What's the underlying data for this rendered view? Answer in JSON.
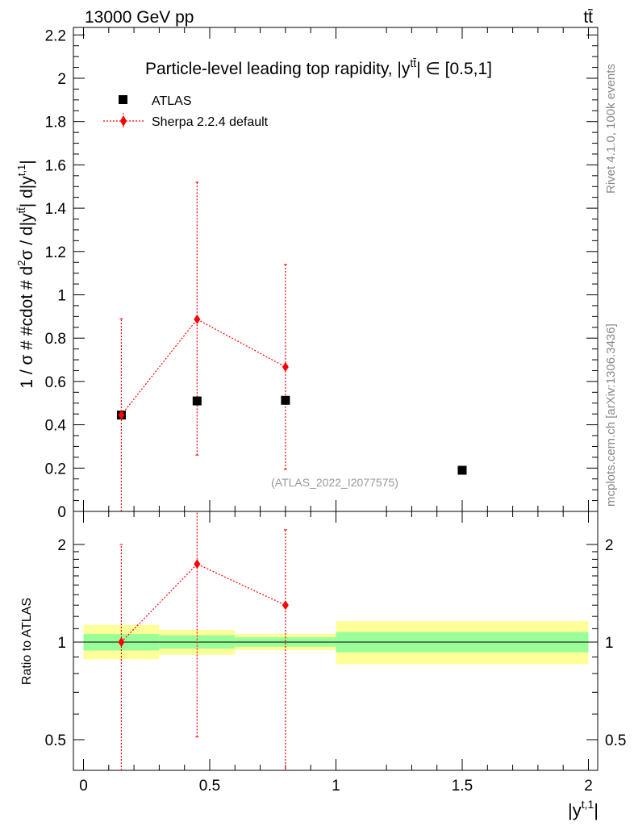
{
  "header": {
    "energy_label": "13000 GeV pp",
    "process_label": "tt̄"
  },
  "side_labels": {
    "rivet": "Rivet 4.1.0,  100k events",
    "mcplots": "mcplots.cern.ch [arXiv:1306.3436]"
  },
  "colors": {
    "atlas": "#000000",
    "sherpa": "#ff0000",
    "band_inner": "#99ff99",
    "band_outer": "#ffff99"
  },
  "chart_data": [
    {
      "type": "scatter",
      "title": "Particle-level leading top rapidity, |y^{tt̄}| ∈ [0.5,1]",
      "title_main": "Particle-level leading top rapidity, |y",
      "title_sup": "tt̄",
      "title_tail": "| ∈ [0.5,1]",
      "ylabel": "1 / σ # #cdot # d²σ / d|y^{tt̄}| d|y^{t,1}|",
      "ylabel_main": "1 / σ # #cdot # d",
      "ylabel_sup2": "2",
      "ylabel_mid": "σ / d|y",
      "ylabel_sup_tt": "tt̄",
      "ylabel_mid2": "| d|y",
      "ylabel_sup_t1": "t,1",
      "ylabel_end": "|",
      "watermark": "(ATLAS_2022_I2077575)",
      "xlim": [
        -0.05,
        2.05
      ],
      "ylim": [
        0,
        2.22
      ],
      "yticks": [
        0,
        0.2,
        0.4,
        0.6,
        0.8,
        1,
        1.2,
        1.4,
        1.6,
        1.8,
        2,
        2.2
      ],
      "ytick_labels": [
        "0",
        "0.2",
        "0.4",
        "0.6",
        "0.8",
        "1",
        "1.2",
        "1.4",
        "1.6",
        "1.8",
        "2",
        "2.2"
      ],
      "legend": [
        "ATLAS",
        "Sherpa 2.2.4 default"
      ],
      "legend_position": "top-left",
      "series": [
        {
          "name": "ATLAS",
          "x": [
            0.15,
            0.45,
            0.8,
            1.5
          ],
          "y": [
            0.445,
            0.51,
            0.513,
            0.19
          ]
        },
        {
          "name": "Sherpa 2.2.4 default",
          "x": [
            0.15,
            0.45,
            0.8
          ],
          "y": [
            0.445,
            0.887,
            0.667
          ],
          "yerr_low": [
            0.445,
            0.627,
            0.473
          ],
          "yerr_high": [
            0.445,
            0.633,
            0.473
          ]
        }
      ]
    },
    {
      "type": "scatter",
      "ylabel": "Ratio to ATLAS",
      "xlabel_main": "|y",
      "xlabel_sup": "t,1",
      "xlabel_end": "|",
      "scale": "log",
      "xlim": [
        -0.05,
        2.05
      ],
      "ylim": [
        0.43,
        2.35
      ],
      "xticks": [
        0,
        0.5,
        1,
        1.5,
        2
      ],
      "xtick_labels": [
        "0",
        "0.5",
        "1",
        "1.5",
        "2"
      ],
      "yticks": [
        0.5,
        1,
        2
      ],
      "ytick_labels": [
        "0.5",
        "1",
        "2"
      ],
      "bands": [
        {
          "x_lo": 0.0,
          "x_hi": 0.3,
          "inner_lo": 0.942,
          "inner_hi": 1.058,
          "outer_lo": 0.885,
          "outer_hi": 1.13
        },
        {
          "x_lo": 0.3,
          "x_hi": 0.6,
          "inner_lo": 0.955,
          "inner_hi": 1.05,
          "outer_lo": 0.913,
          "outer_hi": 1.09
        },
        {
          "x_lo": 0.6,
          "x_hi": 1.0,
          "inner_lo": 0.968,
          "inner_hi": 1.035,
          "outer_lo": 0.944,
          "outer_hi": 1.06
        },
        {
          "x_lo": 1.0,
          "x_hi": 2.0,
          "inner_lo": 0.93,
          "inner_hi": 1.074,
          "outer_lo": 0.855,
          "outer_hi": 1.16
        }
      ],
      "series": [
        {
          "name": "Sherpa 2.2.4 default",
          "x": [
            0.15,
            0.45,
            0.8
          ],
          "y": [
            1.0,
            1.74,
            1.3
          ],
          "yerr_low": [
            0.6,
            1.23,
            0.92
          ],
          "yerr_high": [
            1.0,
            1.25,
            0.92
          ]
        }
      ]
    }
  ]
}
